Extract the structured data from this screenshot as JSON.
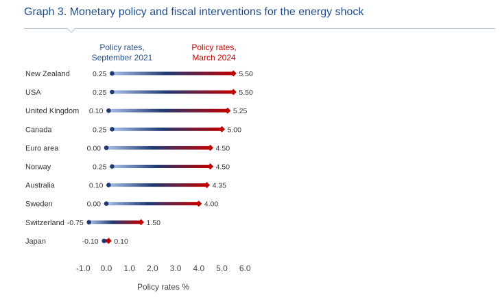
{
  "title": "Graph 3. Monetary policy and fiscal interventions for the energy shock",
  "legend": {
    "start_label_line1": "Policy rates,",
    "start_label_line2": "September 2021",
    "end_label_line1": "Policy rates,",
    "end_label_line2": "March 2024"
  },
  "colors": {
    "start": "#1f3a73",
    "end": "#c00000",
    "bar_light": "#a9c1e8",
    "title": "#1f4e8c"
  },
  "chart_data": {
    "type": "dumbbell",
    "xlabel": "Policy rates %",
    "xlim": [
      -1.0,
      6.0
    ],
    "xticks": [
      "-1.0",
      "0.0",
      "1.0",
      "2.0",
      "3.0",
      "4.0",
      "5.0",
      "6.0"
    ],
    "series": [
      {
        "name": "Policy rates, September 2021",
        "values": [
          0.25,
          0.25,
          0.1,
          0.25,
          0.0,
          0.25,
          0.1,
          0.0,
          -0.75,
          -0.1
        ]
      },
      {
        "name": "Policy rates, March 2024",
        "values": [
          5.5,
          5.5,
          5.25,
          5.0,
          4.5,
          4.5,
          4.35,
          4.0,
          1.5,
          0.1
        ]
      }
    ],
    "categories": [
      "New Zealand",
      "USA",
      "United Kingdom",
      "Canada",
      "Euro area",
      "Norway",
      "Australia",
      "Sweden",
      "Switzerland",
      "Japan"
    ],
    "start_labels": [
      "0.25",
      "0.25",
      "0.10",
      "0.25",
      "0.00",
      "0.25",
      "0.10",
      "0.00",
      "-0.75",
      "-0.10"
    ],
    "end_labels": [
      "5.50",
      "5.50",
      "5.25",
      "5.00",
      "4.50",
      "4.50",
      "4.35",
      "4.00",
      "1.50",
      "0.10"
    ]
  }
}
